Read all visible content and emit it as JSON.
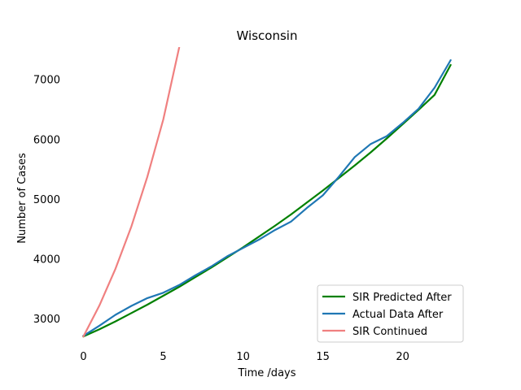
{
  "chart_data": {
    "type": "line",
    "title": "Wisconsin",
    "xlabel": "Time /days",
    "ylabel": "Number of Cases",
    "xlim": [
      -1.15,
      24.15
    ],
    "ylim": [
      2510,
      7540
    ],
    "xticks": [
      0,
      5,
      10,
      15,
      20
    ],
    "yticks": [
      3000,
      4000,
      5000,
      6000,
      7000
    ],
    "grid": false,
    "legend_position": "lower-right",
    "series": [
      {
        "name": "SIR Predicted After",
        "color": "#008000",
        "x": [
          0,
          1,
          2,
          3,
          4,
          5,
          6,
          7,
          8,
          9,
          10,
          11,
          12,
          13,
          14,
          15,
          16,
          17,
          18,
          19,
          20,
          21,
          22,
          23
        ],
        "y": [
          2700,
          2820,
          2950,
          3090,
          3230,
          3380,
          3530,
          3690,
          3850,
          4020,
          4190,
          4370,
          4550,
          4740,
          4940,
          5140,
          5350,
          5560,
          5780,
          6010,
          6250,
          6490,
          6740,
          7240
        ]
      },
      {
        "name": "Actual Data After",
        "color": "#1f77b4",
        "x": [
          0,
          1,
          2,
          3,
          4,
          5,
          6,
          7,
          8,
          9,
          10,
          11,
          12,
          13,
          14,
          15,
          16,
          17,
          18,
          19,
          20,
          21,
          22,
          23
        ],
        "y": [
          2710,
          2880,
          3060,
          3210,
          3340,
          3430,
          3560,
          3720,
          3870,
          4040,
          4180,
          4320,
          4480,
          4620,
          4850,
          5060,
          5370,
          5700,
          5920,
          6050,
          6270,
          6510,
          6860,
          7320
        ]
      },
      {
        "name": "SIR Continued",
        "color": "#f08080",
        "x": [
          0,
          1,
          2,
          3,
          4,
          5,
          6
        ],
        "y": [
          2700,
          3220,
          3830,
          4540,
          5370,
          6330,
          7540
        ]
      }
    ]
  }
}
